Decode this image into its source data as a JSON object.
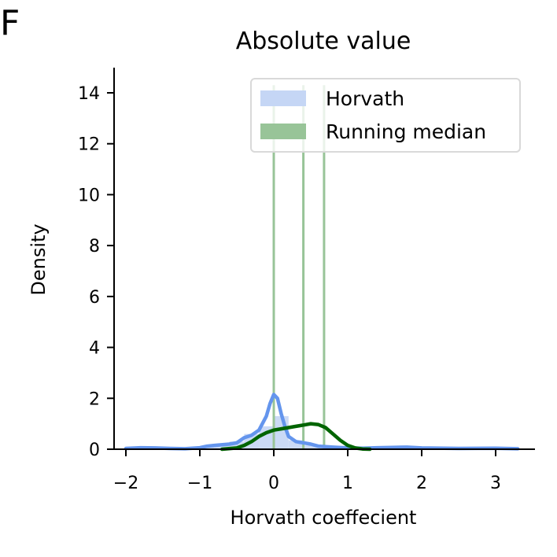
{
  "panel_letter": "F",
  "chart_data": {
    "type": "histogram",
    "title": "Absolute value",
    "xlabel": "Horvath coeffecient",
    "ylabel": "Density",
    "xlim": [
      -2.1,
      3.5
    ],
    "ylim": [
      0,
      15
    ],
    "xticks": [
      -2,
      -1,
      0,
      1,
      2,
      3
    ],
    "xtick_labels": [
      "−2",
      "−1",
      "0",
      "1",
      "2",
      "3"
    ],
    "yticks": [
      0,
      2,
      4,
      6,
      8,
      10,
      12,
      14
    ],
    "ytick_labels": [
      "0",
      "2",
      "4",
      "6",
      "8",
      "10",
      "12",
      "14"
    ],
    "legend_position": "upper-right",
    "grid": false,
    "series": [
      {
        "name": "Horvath",
        "color": "#6495ED",
        "hist_color": "#c5d6f5",
        "hist_bins": [
          {
            "x0": -2.0,
            "x1": -1.8,
            "density": 0.05
          },
          {
            "x0": -1.8,
            "x1": -1.6,
            "density": 0.05
          },
          {
            "x0": -1.6,
            "x1": -1.4,
            "density": 0.05
          },
          {
            "x0": -1.4,
            "x1": -1.2,
            "density": 0.05
          },
          {
            "x0": -1.2,
            "x1": -1.0,
            "density": 0.05
          },
          {
            "x0": -1.0,
            "x1": -0.8,
            "density": 0.1
          },
          {
            "x0": -0.8,
            "x1": -0.6,
            "density": 0.15
          },
          {
            "x0": -0.6,
            "x1": -0.4,
            "density": 0.3
          },
          {
            "x0": -0.4,
            "x1": -0.2,
            "density": 0.6
          },
          {
            "x0": -0.2,
            "x1": 0.0,
            "density": 0.9
          },
          {
            "x0": 0.0,
            "x1": 0.2,
            "density": 1.3
          },
          {
            "x0": 0.2,
            "x1": 0.4,
            "density": 0.35
          },
          {
            "x0": 0.4,
            "x1": 0.6,
            "density": 0.15
          },
          {
            "x0": 0.6,
            "x1": 0.8,
            "density": 0.1
          },
          {
            "x0": 0.8,
            "x1": 1.0,
            "density": 0.05
          }
        ],
        "kde_x": [
          -2.0,
          -1.8,
          -1.6,
          -1.4,
          -1.2,
          -1.0,
          -0.9,
          -0.8,
          -0.6,
          -0.5,
          -0.4,
          -0.3,
          -0.2,
          -0.1,
          -0.05,
          0.0,
          0.05,
          0.1,
          0.15,
          0.2,
          0.3,
          0.4,
          0.5,
          0.6,
          0.7,
          0.8,
          1.0,
          1.2,
          1.4,
          1.6,
          1.8,
          2.0,
          2.5,
          3.0,
          3.3
        ],
        "kde_y": [
          0.03,
          0.06,
          0.05,
          0.03,
          0.02,
          0.06,
          0.12,
          0.15,
          0.2,
          0.25,
          0.45,
          0.55,
          0.75,
          1.3,
          1.8,
          2.15,
          2.0,
          1.4,
          0.9,
          0.5,
          0.3,
          0.25,
          0.2,
          0.12,
          0.1,
          0.08,
          0.05,
          0.04,
          0.06,
          0.07,
          0.08,
          0.05,
          0.03,
          0.04,
          0.02
        ]
      },
      {
        "name": "Running median",
        "color": "#006400",
        "hist_color": "#98c498",
        "spikes": [
          {
            "x": 0.0,
            "density": 14.3
          },
          {
            "x": 0.4,
            "density": 14.3
          },
          {
            "x": 0.68,
            "density": 14.3
          }
        ],
        "kde_x": [
          -0.7,
          -0.5,
          -0.4,
          -0.3,
          -0.2,
          -0.1,
          0.0,
          0.1,
          0.2,
          0.3,
          0.4,
          0.5,
          0.6,
          0.7,
          0.8,
          0.9,
          1.0,
          1.1,
          1.2,
          1.3
        ],
        "kde_y": [
          0.0,
          0.05,
          0.15,
          0.3,
          0.5,
          0.65,
          0.75,
          0.8,
          0.85,
          0.9,
          0.95,
          1.0,
          0.97,
          0.85,
          0.6,
          0.35,
          0.15,
          0.05,
          0.01,
          0.0
        ]
      }
    ]
  }
}
